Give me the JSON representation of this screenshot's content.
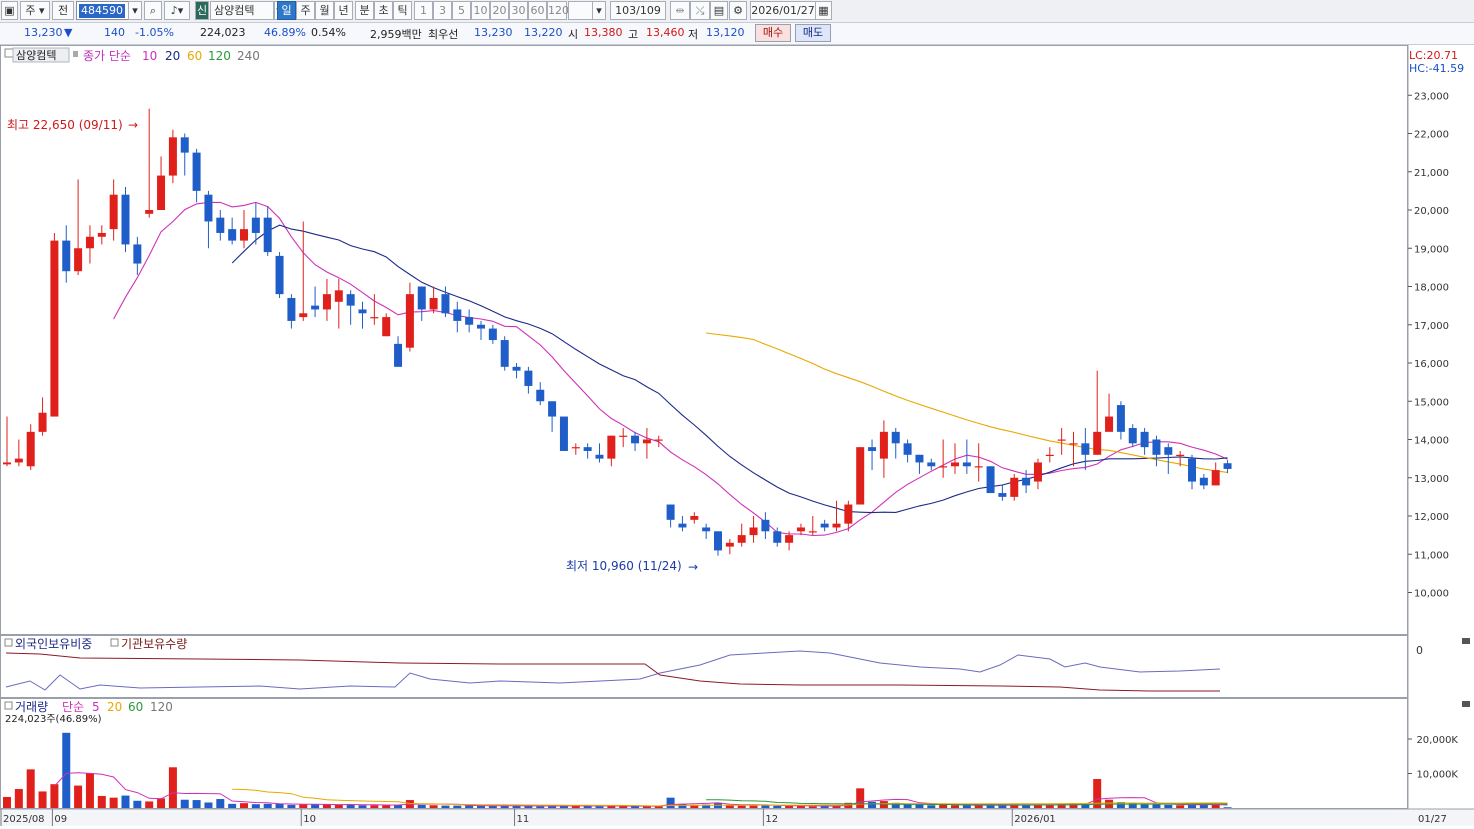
{
  "toolbar": {
    "type_select": "주",
    "prefix": "전",
    "stock_code": "484590",
    "new_badge": "신",
    "stock_name": "삼양컴텍",
    "periods": [
      "일",
      "주",
      "월",
      "년",
      "분",
      "초",
      "틱"
    ],
    "active_period": "일",
    "intervals": [
      "1",
      "3",
      "5",
      "10",
      "20",
      "30",
      "60",
      "120"
    ],
    "page_counter": "103/109",
    "date": "2026/01/27"
  },
  "info": {
    "price": "13,230",
    "change": "140",
    "change_pct": "-1.05%",
    "volume": "224,023",
    "turnover_pct": "46.89%",
    "foreign_pct": "0.54%",
    "amount": "2,959백만",
    "bid_label": "최우선",
    "ask": "13,230",
    "bid": "13,220",
    "open_label": "시",
    "open": "13,380",
    "high_label": "고",
    "high": "13,460",
    "low_label": "저",
    "low": "13,120",
    "buy_button": "매수",
    "sell_button": "매도"
  },
  "legend": {
    "stock_tag": "삼양컴텍",
    "ma_title": "종가 단순",
    "ma_periods": [
      "10",
      "20",
      "60",
      "120",
      "240"
    ],
    "lc": "LC:20.71",
    "hc": "HC:-41.59",
    "max_note": "최고 22,650 (09/11)",
    "min_note": "최저 10,960 (11/24)"
  },
  "panel2": {
    "foreign_label": "외국인보유비중",
    "inst_label": "기관보유수량",
    "zero_label": "0"
  },
  "panel3": {
    "vol_label": "거래량",
    "ma_title": "단순",
    "ma_periods": [
      "5",
      "20",
      "60",
      "120"
    ],
    "current": "224,023주(46.89%)"
  },
  "x_labels": [
    "2025/08",
    "09",
    "10",
    "11",
    "12",
    "2026/01"
  ],
  "x_end_label": "01/27",
  "colors": {
    "up": "#e0211b",
    "down": "#1f5ec9",
    "ma10": "#d030b8",
    "ma20": "#1c2a88",
    "ma60": "#e8a800",
    "ma120": "#2a9a3a",
    "ma240": "#777777"
  },
  "chart_data": {
    "type": "candlestick",
    "price_axis": [
      "10,000",
      "11,000",
      "12,000",
      "13,000",
      "14,000",
      "15,000",
      "16,000",
      "17,000",
      "18,000",
      "19,000",
      "20,000",
      "21,000",
      "22,000",
      "23,000"
    ],
    "price_axis_values": [
      10000,
      11000,
      12000,
      13000,
      14000,
      15000,
      16000,
      17000,
      18000,
      19000,
      20000,
      21000,
      22000,
      23000
    ],
    "volume_axis": [
      "10,000K",
      "20,000K"
    ],
    "volume_axis_values": [
      10000,
      20000
    ],
    "candles": [
      [
        13350,
        13400,
        14600,
        13300
      ],
      [
        13400,
        13500,
        14000,
        13300
      ],
      [
        13300,
        14200,
        14400,
        13200
      ],
      [
        14200,
        14700,
        15100,
        14100
      ],
      [
        14600,
        19200,
        19400,
        14600
      ],
      [
        19200,
        18400,
        19600,
        18100
      ],
      [
        18400,
        19000,
        20800,
        18300
      ],
      [
        19000,
        19300,
        19600,
        18600
      ],
      [
        19300,
        19400,
        19600,
        19100
      ],
      [
        19500,
        20400,
        20800,
        19200
      ],
      [
        20400,
        19100,
        20600,
        18900
      ],
      [
        19100,
        18600,
        19300,
        18300
      ],
      [
        19900,
        20000,
        22650,
        19800
      ],
      [
        20000,
        20900,
        21400,
        20100
      ],
      [
        20900,
        21900,
        22100,
        20700
      ],
      [
        21900,
        21500,
        22000,
        20900
      ],
      [
        21500,
        20500,
        21600,
        20200
      ],
      [
        20400,
        19700,
        20500,
        19000
      ],
      [
        19800,
        19400,
        20000,
        19200
      ],
      [
        19500,
        19200,
        19800,
        19100
      ],
      [
        19200,
        19500,
        20000,
        19000
      ],
      [
        19800,
        19400,
        20200,
        19100
      ],
      [
        19800,
        18900,
        20100,
        18800
      ],
      [
        18800,
        17800,
        18900,
        17700
      ],
      [
        17700,
        17100,
        17800,
        16900
      ],
      [
        17200,
        17300,
        19700,
        17100
      ],
      [
        17500,
        17400,
        18000,
        17200
      ],
      [
        17400,
        17800,
        18200,
        17100
      ],
      [
        17600,
        17900,
        18200,
        16900
      ],
      [
        17800,
        17500,
        17900,
        17000
      ],
      [
        17400,
        17300,
        17600,
        16900
      ],
      [
        17200,
        17200,
        17800,
        17000
      ],
      [
        16700,
        17200,
        17300,
        16700
      ],
      [
        16500,
        15900,
        16700,
        15900
      ],
      [
        16400,
        17800,
        18100,
        16300
      ],
      [
        18000,
        17400,
        18000,
        17100
      ],
      [
        17400,
        17700,
        18000,
        17300
      ],
      [
        17800,
        17300,
        18000,
        17200
      ],
      [
        17400,
        17100,
        17600,
        16800
      ],
      [
        17200,
        17000,
        17400,
        16800
      ],
      [
        17000,
        16900,
        17100,
        16600
      ],
      [
        16900,
        16600,
        17000,
        16500
      ],
      [
        16600,
        15900,
        16700,
        15800
      ],
      [
        15900,
        15800,
        16000,
        15600
      ],
      [
        15800,
        15400,
        15900,
        15200
      ],
      [
        15300,
        15000,
        15500,
        14900
      ],
      [
        15000,
        14600,
        15000,
        14200
      ],
      [
        14600,
        13700,
        14600,
        13700
      ],
      [
        13800,
        13800,
        13900,
        13600
      ],
      [
        13800,
        13700,
        13900,
        13500
      ],
      [
        13600,
        13500,
        13900,
        13400
      ],
      [
        13500,
        14100,
        14100,
        13300
      ],
      [
        14100,
        14100,
        14300,
        13800
      ],
      [
        14100,
        13900,
        14200,
        13700
      ],
      [
        13900,
        14000,
        14300,
        13500
      ],
      [
        14000,
        14000,
        14100,
        13800
      ],
      [
        12300,
        11900,
        12300,
        11700
      ],
      [
        11800,
        11700,
        12000,
        11600
      ],
      [
        11900,
        12000,
        12100,
        11800
      ],
      [
        11700,
        11600,
        11800,
        11400
      ],
      [
        11600,
        11100,
        11600,
        10960
      ],
      [
        11200,
        11300,
        11400,
        11000
      ],
      [
        11300,
        11500,
        11800,
        11200
      ],
      [
        11500,
        11700,
        12000,
        11300
      ],
      [
        11900,
        11600,
        12100,
        11400
      ],
      [
        11600,
        11300,
        11700,
        11200
      ],
      [
        11300,
        11500,
        11600,
        11100
      ],
      [
        11600,
        11700,
        11800,
        11500
      ],
      [
        11600,
        11600,
        12000,
        11500
      ],
      [
        11800,
        11700,
        11900,
        11600
      ],
      [
        11700,
        11800,
        12400,
        11600
      ],
      [
        11800,
        12300,
        12400,
        11600
      ],
      [
        12300,
        13800,
        13800,
        12300
      ],
      [
        13800,
        13700,
        14000,
        13200
      ],
      [
        13500,
        14200,
        14500,
        13000
      ],
      [
        14200,
        13900,
        14300,
        13500
      ],
      [
        13900,
        13600,
        14000,
        13400
      ],
      [
        13600,
        13400,
        13600,
        13100
      ],
      [
        13400,
        13300,
        13500,
        13200
      ],
      [
        13300,
        13300,
        14000,
        13000
      ],
      [
        13300,
        13400,
        13900,
        13100
      ],
      [
        13400,
        13300,
        14000,
        13100
      ],
      [
        13300,
        13300,
        13900,
        12900
      ],
      [
        13300,
        12600,
        13300,
        12600
      ],
      [
        12600,
        12500,
        12800,
        12400
      ],
      [
        12500,
        13000,
        13100,
        12400
      ],
      [
        13000,
        12800,
        13200,
        12600
      ],
      [
        12900,
        13400,
        13500,
        12700
      ],
      [
        13600,
        13600,
        13800,
        13400
      ],
      [
        14000,
        14000,
        14300,
        13600
      ],
      [
        13900,
        13900,
        14200,
        13300
      ],
      [
        13900,
        13600,
        14300,
        13200
      ],
      [
        13600,
        14200,
        15800,
        13600
      ],
      [
        14200,
        14600,
        15200,
        14300
      ],
      [
        14900,
        14200,
        15000,
        14000
      ],
      [
        14300,
        13900,
        14400,
        13800
      ],
      [
        14200,
        13800,
        14300,
        13600
      ],
      [
        14000,
        13600,
        14100,
        13300
      ],
      [
        13800,
        13600,
        13900,
        13100
      ],
      [
        13600,
        13600,
        13700,
        13300
      ],
      [
        13500,
        12900,
        13600,
        12700
      ],
      [
        13000,
        12800,
        13100,
        12700
      ],
      [
        12800,
        13200,
        13400,
        12800
      ],
      [
        13380,
        13230,
        13460,
        13120
      ]
    ],
    "volume": [
      3.2,
      5.5,
      11.2,
      4.8,
      6.9,
      21.8,
      6.5,
      10.1,
      3.5,
      3.0,
      3.6,
      2.1,
      1.9,
      2.8,
      11.8,
      2.4,
      2.3,
      1.6,
      2.6,
      1.2,
      1.4,
      1.1,
      1.2,
      1.2,
      0.9,
      1.0,
      1.0,
      1.1,
      0.9,
      1.0,
      0.8,
      0.8,
      0.8,
      0.9,
      2.3,
      0.9,
      0.8,
      0.7,
      0.7,
      0.7,
      0.6,
      0.7,
      0.6,
      0.6,
      0.6,
      0.5,
      0.6,
      0.7,
      0.6,
      0.6,
      0.5,
      0.6,
      0.6,
      0.5,
      0.5,
      0.5,
      3.0,
      1.2,
      0.9,
      1.0,
      1.4,
      0.8,
      0.7,
      0.7,
      0.9,
      0.6,
      0.6,
      0.6,
      0.5,
      0.6,
      0.6,
      1.5,
      5.7,
      1.8,
      2.0,
      1.5,
      1.2,
      1.0,
      0.8,
      0.9,
      0.8,
      0.8,
      0.8,
      0.9,
      0.8,
      0.9,
      0.8,
      0.9,
      0.9,
      1.1,
      1.1,
      1.2,
      8.4,
      2.4,
      1.7,
      1.3,
      1.0,
      1.0,
      0.9,
      0.8,
      1.1,
      1.0,
      1.3,
      0.22
    ],
    "x_ticks": [
      {
        "label": "2025/08",
        "index": 0
      },
      {
        "label": "09",
        "index": 4
      },
      {
        "label": "10",
        "index": 25
      },
      {
        "label": "11",
        "index": 43
      },
      {
        "label": "12",
        "index": 64
      },
      {
        "label": "2026/01",
        "index": 85
      }
    ],
    "ma_series": [
      {
        "name": "10",
        "color": "#d030b8"
      },
      {
        "name": "20",
        "color": "#1c2a88"
      },
      {
        "name": "60",
        "color": "#e8a800"
      }
    ],
    "annotations": [
      {
        "text": "최고 22,650 (09/11)",
        "index": 12,
        "value": 22650
      },
      {
        "text": "최저 10,960 (11/24)",
        "index": 60,
        "value": 10960
      }
    ]
  }
}
